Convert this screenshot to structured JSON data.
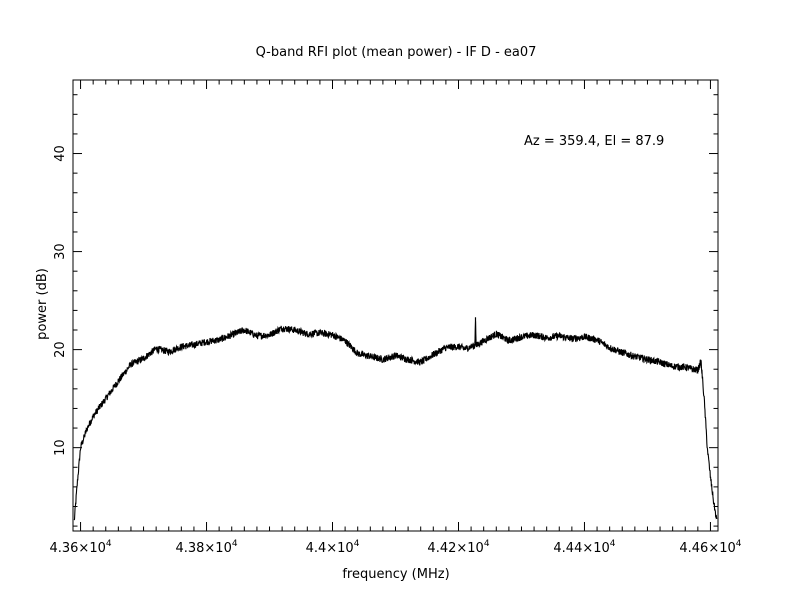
{
  "chart_data": {
    "type": "line",
    "title": "Q-band RFI plot (mean power) - IF D - ea07",
    "xlabel": "frequency (MHz)",
    "ylabel": "power (dB)",
    "annotation": "Az = 359.4, El = 87.9",
    "xlim": [
      43588,
      44612
    ],
    "ylim": [
      1.5,
      47.5
    ],
    "x_ticks": [
      {
        "value": 43600,
        "label": "4.36×10"
      },
      {
        "value": 43800,
        "label": "4.38×10"
      },
      {
        "value": 44000,
        "label": "4.4×10"
      },
      {
        "value": 44200,
        "label": "4.42×10"
      },
      {
        "value": 44400,
        "label": "4.44×10"
      },
      {
        "value": 44600,
        "label": "4.46×10"
      }
    ],
    "x_tick_exponent": "4",
    "y_ticks": [
      {
        "value": 10,
        "label": "10"
      },
      {
        "value": 20,
        "label": "20"
      },
      {
        "value": 30,
        "label": "30"
      },
      {
        "value": 40,
        "label": "40"
      }
    ],
    "grid": false,
    "line_color": "#000000",
    "series": [
      {
        "x": [
          43590,
          43595,
          43600,
          43610,
          43620,
          43640,
          43660,
          43680,
          43700,
          43720,
          43740,
          43760,
          43780,
          43800,
          43820,
          43840,
          43860,
          43880,
          43900,
          43920,
          43940,
          43960,
          43980,
          44000,
          44020,
          44040,
          44060,
          44080,
          44100,
          44120,
          44140,
          44160,
          44180,
          44200,
          44210,
          44220,
          44226,
          44227,
          44228,
          44240,
          44260,
          44280,
          44300,
          44320,
          44340,
          44360,
          44380,
          44400,
          44420,
          44440,
          44460,
          44480,
          44500,
          44520,
          44540,
          44560,
          44580,
          44585,
          44590,
          44595,
          44600,
          44605,
          44610
        ],
        "y": [
          2.5,
          6.5,
          10.0,
          11.9,
          13.2,
          15.0,
          16.8,
          18.5,
          19.1,
          20.1,
          19.8,
          20.3,
          20.5,
          20.8,
          21.0,
          21.5,
          22.0,
          21.4,
          21.5,
          22.2,
          22.0,
          21.6,
          21.7,
          21.5,
          20.9,
          19.6,
          19.3,
          19.0,
          19.4,
          19.0,
          18.7,
          19.5,
          20.2,
          20.3,
          20.1,
          20.3,
          20.4,
          23.3,
          20.4,
          20.9,
          21.6,
          20.9,
          21.3,
          21.5,
          21.2,
          21.4,
          21.1,
          21.3,
          21.0,
          20.2,
          19.7,
          19.3,
          19.0,
          18.7,
          18.3,
          18.2,
          17.9,
          18.8,
          15.0,
          10.0,
          7.0,
          4.5,
          2.5
        ]
      }
    ]
  }
}
